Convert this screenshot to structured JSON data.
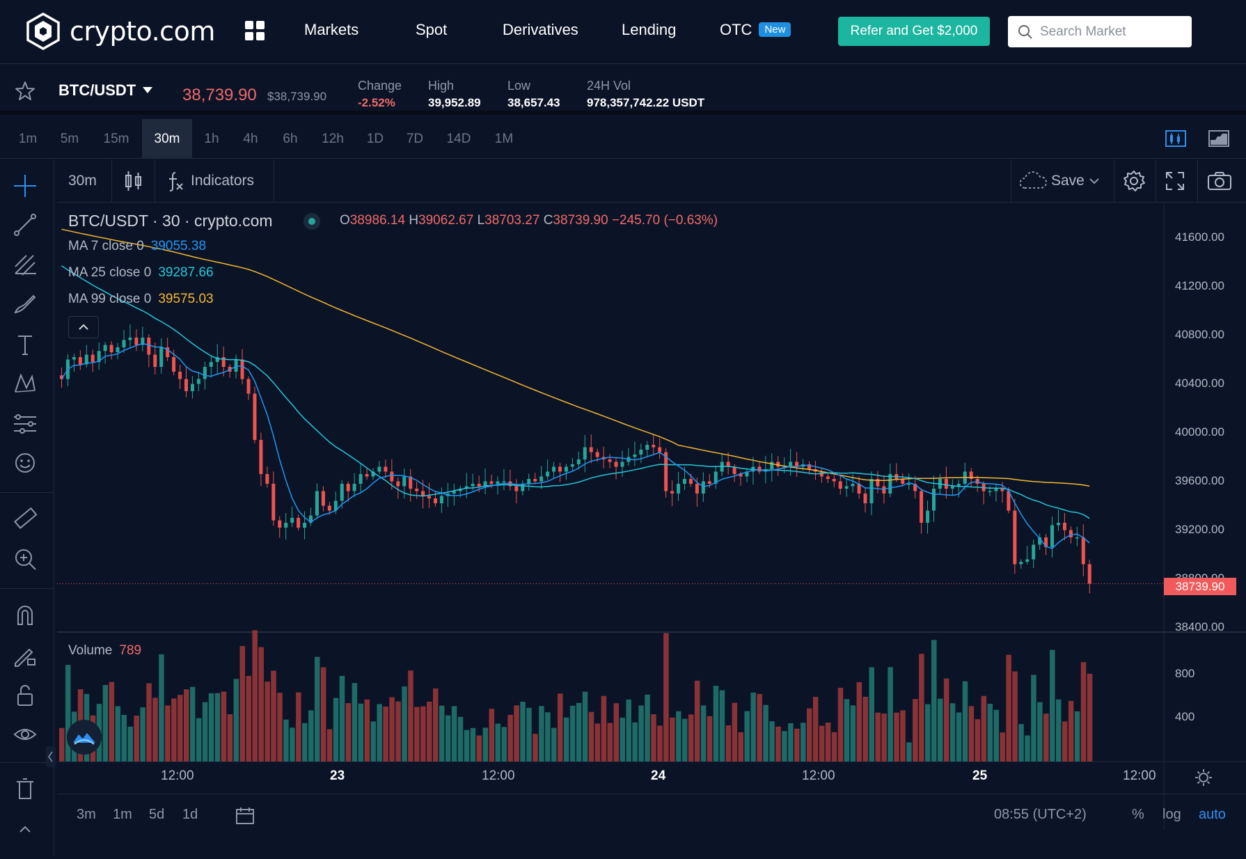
{
  "brand": {
    "name": "crypto.com"
  },
  "nav": {
    "items": [
      "Markets",
      "Spot",
      "Derivatives",
      "Lending",
      "OTC"
    ],
    "otc_badge": "New",
    "refer_button": "Refer and Get $2,000",
    "search_placeholder": "Search Market"
  },
  "ticker": {
    "pair": "BTC/USDT",
    "price": "38,739.90",
    "price_usd": "$38,739.90",
    "change_label": "Change",
    "change_value": "-2.52%",
    "high_label": "High",
    "high_value": "39,952.89",
    "low_label": "Low",
    "low_value": "38,657.43",
    "vol_label": "24H Vol",
    "vol_value": "978,357,742.22 USDT"
  },
  "intervals": [
    "1m",
    "5m",
    "15m",
    "30m",
    "1h",
    "4h",
    "6h",
    "12h",
    "1D",
    "7D",
    "14D",
    "1M"
  ],
  "active_interval": "30m",
  "chart_toolbar": {
    "interval": "30m",
    "indicators": "Indicators",
    "save": "Save"
  },
  "legend": {
    "title": "BTC/USDT · 30 · crypto.com",
    "o_label": "O",
    "o": "38986.14",
    "h_label": "H",
    "h": "39062.67",
    "l_label": "L",
    "l": "38703.27",
    "c_label": "C",
    "c": "38739.90",
    "chg": "−245.70 (−0.63%)",
    "ma7_label": "MA 7 close 0",
    "ma7": "39055.38",
    "ma25_label": "MA 25 close 0",
    "ma25": "39287.66",
    "ma99_label": "MA 99 close 0",
    "ma99": "39575.03"
  },
  "volume": {
    "label": "Volume",
    "value": "789"
  },
  "last_price_tag": "38739.90",
  "colors": {
    "up": "#26a69a",
    "down": "#ef5350",
    "ma7": "#2196f3",
    "ma25": "#26c6da",
    "ma99": "#f5b731",
    "bg": "#0b1426"
  },
  "bottom_bar": {
    "ranges": [
      "3m",
      "1m",
      "5d",
      "1d"
    ],
    "time": "08:55 (UTC+2)",
    "percent": "%",
    "log": "log",
    "auto": "auto"
  },
  "chart_data": {
    "type": "candlestick",
    "y_ticks": [
      "41600.00",
      "41200.00",
      "40800.00",
      "40400.00",
      "40000.00",
      "39600.00",
      "39200.00",
      "38800.00",
      "38400.00"
    ],
    "volume_ticks": [
      "800",
      "400"
    ],
    "x_ticks": [
      "12:00",
      "23",
      "12:00",
      "24",
      "12:00",
      "25",
      "12:00"
    ],
    "ylim": [
      38400,
      41700
    ],
    "volume_ylim": [
      0,
      1000
    ],
    "close": [
      40420,
      40580,
      40600,
      40540,
      40620,
      40560,
      40650,
      40700,
      40640,
      40680,
      40740,
      40760,
      40700,
      40760,
      40620,
      40520,
      40680,
      40600,
      40480,
      40420,
      40320,
      40380,
      40420,
      40520,
      40560,
      40600,
      40520,
      40480,
      40580,
      40420,
      40300,
      39920,
      39640,
      39560,
      39260,
      39200,
      39240,
      39280,
      39200,
      39240,
      39300,
      39500,
      39380,
      39340,
      39420,
      39560,
      39500,
      39560,
      39640,
      39620,
      39660,
      39700,
      39660,
      39580,
      39540,
      39620,
      39520,
      39500,
      39460,
      39440,
      39400,
      39460,
      39480,
      39500,
      39520,
      39540,
      39560,
      39540,
      39580,
      39560,
      39580,
      39580,
      39540,
      39500,
      39560,
      39600,
      39580,
      39620,
      39660,
      39700,
      39660,
      39700,
      39720,
      39760,
      39860,
      39820,
      39780,
      39760,
      39740,
      39700,
      39740,
      39780,
      39800,
      39840,
      39880,
      39860,
      39820,
      39500,
      39480,
      39560,
      39600,
      39560,
      39480,
      39580,
      39560,
      39660,
      39740,
      39700,
      39640,
      39620,
      39660,
      39700,
      39660,
      39680,
      39740,
      39700,
      39700,
      39740,
      39700,
      39720,
      39680,
      39660,
      39620,
      39600,
      39580,
      39520,
      39540,
      39560,
      39480,
      39400,
      39600,
      39540,
      39480,
      39640,
      39600,
      39560,
      39560,
      39500,
      39240,
      39340,
      39520,
      39600,
      39520,
      39540,
      39560,
      39660,
      39600,
      39560,
      39500,
      39500,
      39520,
      39500,
      39340,
      38900,
      38920,
      38940,
      39060,
      39120,
      39040,
      39220,
      39240,
      39180,
      39120,
      39120,
      38900,
      38740
    ]
  }
}
